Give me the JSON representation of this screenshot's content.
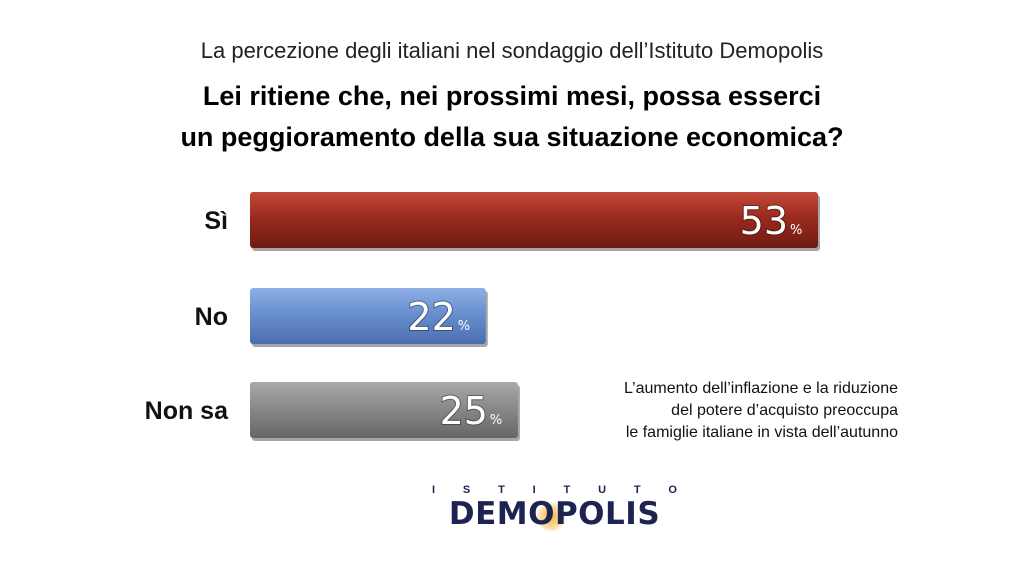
{
  "header": {
    "subtitle": "La percezione degli italiani nel sondaggio dell’Istituto Demopolis",
    "title_line1": "Lei ritiene che, nei prossimi mesi, possa esserci",
    "title_line2": "un peggioramento della sua situazione economica?"
  },
  "chart_data": {
    "type": "bar",
    "orientation": "horizontal",
    "categories": [
      "Sì",
      "No",
      "Non sa"
    ],
    "values": [
      53,
      22,
      25
    ],
    "unit": "%",
    "colors": [
      "#9b2a1e",
      "#6a8fcf",
      "#8a8a8a"
    ],
    "xlim": [
      0,
      55
    ]
  },
  "note": {
    "line1": "L’aumento dell’inflazione e la riduzione",
    "line2": "del potere d’acquisto preoccupa",
    "line3": "le famiglie italiane in vista dell’autunno"
  },
  "logo": {
    "top_text": [
      "I",
      "S",
      "T",
      "I",
      "T",
      "U",
      "T",
      "O"
    ],
    "main_text": "DEMOPOLIS",
    "accent_color": "#f5a623",
    "brand_color": "#1d2452"
  }
}
